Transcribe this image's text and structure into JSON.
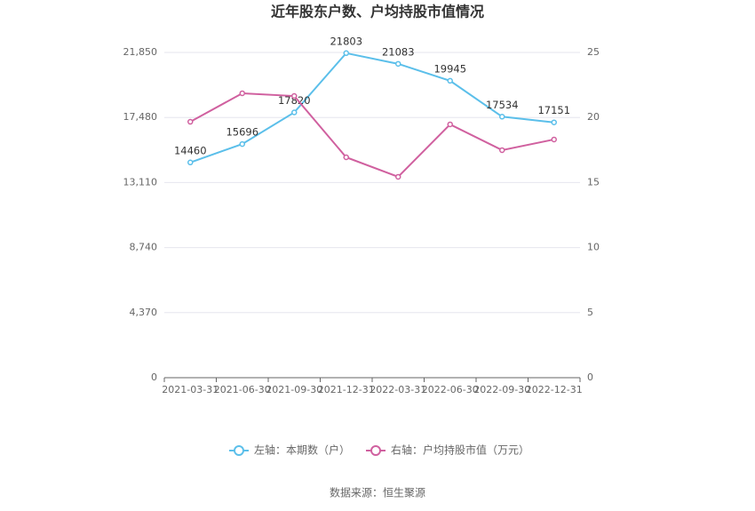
{
  "chart_data": {
    "type": "line",
    "title": "近年股东户数、户均持股市值情况",
    "source": "数据来源：恒生聚源",
    "categories": [
      "2021-03-31",
      "2021-06-30",
      "2021-09-30",
      "2021-12-31",
      "2022-03-31",
      "2022-06-30",
      "2022-09-30",
      "2022-12-31"
    ],
    "series": [
      {
        "name": "左轴：本期数（户）",
        "color": "#5bbfea",
        "values": [
          14460,
          15696,
          17820,
          21803,
          21083,
          19945,
          17534,
          17151
        ]
      },
      {
        "name": "右轴：户均持股市值（万元）",
        "color": "#d0609f",
        "axis": "y2",
        "values": [
          19.67,
          21.86,
          21.65,
          16.94,
          15.44,
          19.47,
          17.49,
          18.31
        ]
      }
    ],
    "ylim": [
      0,
      21850
    ],
    "yticks": [
      0,
      {
        "value": 4370,
        "label": "4,370"
      },
      {
        "value": 8740,
        "label": "8,740"
      },
      {
        "value": 13110,
        "label": "13,110"
      },
      {
        "value": 17480,
        "label": "17,480"
      },
      {
        "value": 21850,
        "label": "21,850"
      }
    ],
    "y2lim": [
      0,
      25
    ],
    "y2ticks": [
      0,
      5,
      10,
      15,
      20,
      25
    ],
    "grid": true
  }
}
